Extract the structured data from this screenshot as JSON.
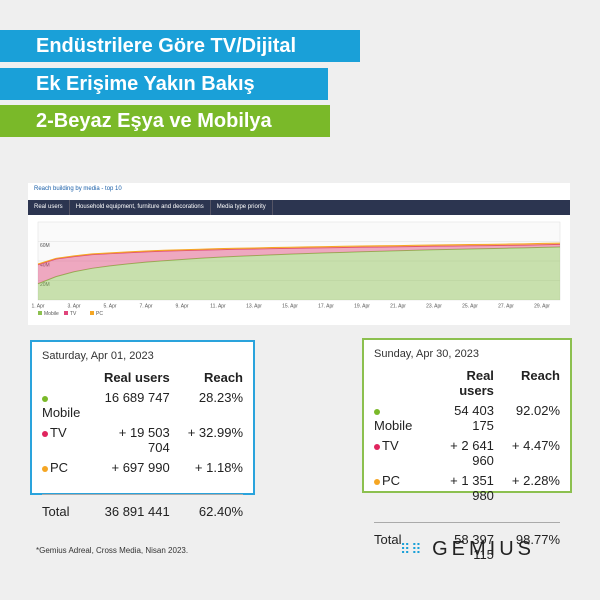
{
  "header": {
    "lines": [
      "Endüstrilere Göre TV/Dijital",
      "Ek Erişime Yakın Bakış",
      "2-Beyaz Eşya ve Mobilya"
    ]
  },
  "chart_data": {
    "type": "area",
    "stacked": true,
    "title": "Reach building by media - top 10",
    "controls": [
      "Real users",
      "Household equipment, furniture and decorations",
      "Media type priority"
    ],
    "categories": [
      "1. Apr",
      null,
      "3. Apr",
      null,
      "5. Apr",
      null,
      "7. Apr",
      null,
      "9. Apr",
      null,
      "11. Apr",
      null,
      "13. Apr",
      null,
      "15. Apr",
      null,
      "17. Apr",
      null,
      "19. Apr",
      null,
      "21. Apr",
      null,
      "23. Apr",
      null,
      "25. Apr",
      null,
      "27. Apr",
      null,
      "29. Apr",
      null
    ],
    "series": [
      {
        "name": "Mobile",
        "color": "#8cc04f",
        "values": [
          16689747,
          24000000,
          29000000,
          32500000,
          35000000,
          37000000,
          38800000,
          40300000,
          41600000,
          42800000,
          43800000,
          44700000,
          45500000,
          46300000,
          47000000,
          47700000,
          48300000,
          48900000,
          49500000,
          50000000,
          50500000,
          51000000,
          51500000,
          51900000,
          52300000,
          52700000,
          53100000,
          53500000,
          54000000,
          54403175
        ]
      },
      {
        "name": "TV",
        "color": "#e0457b",
        "values": [
          19503704,
          18000000,
          15500000,
          14000000,
          12500000,
          11500000,
          10500000,
          9800000,
          9000000,
          8300000,
          7800000,
          7300000,
          6800000,
          6400000,
          6000000,
          5600000,
          5300000,
          5000000,
          4700000,
          4400000,
          4100000,
          3900000,
          3700000,
          3500000,
          3300000,
          3100000,
          2950000,
          2800000,
          2700000,
          2641960
        ]
      },
      {
        "name": "PC",
        "color": "#f5a623",
        "values": [
          697990,
          760000,
          810000,
          850000,
          880000,
          910000,
          940000,
          960000,
          990000,
          1010000,
          1030000,
          1050000,
          1070000,
          1090000,
          1110000,
          1130000,
          1150000,
          1170000,
          1190000,
          1210000,
          1220000,
          1240000,
          1250000,
          1270000,
          1280000,
          1300000,
          1310000,
          1320000,
          1340000,
          1351980
        ]
      }
    ],
    "ylim": [
      0,
      80000000
    ],
    "yticks": [
      {
        "value": 20000000,
        "label": "20M"
      },
      {
        "value": 40000000,
        "label": "40M"
      },
      {
        "value": 60000000,
        "label": "60M"
      }
    ],
    "grid": true
  },
  "tables": [
    {
      "date": "Saturday, Apr 01, 2023",
      "columns": [
        "Real users",
        "Reach"
      ],
      "rows": [
        [
          "Mobile",
          "16 689 747",
          "28.23%"
        ],
        [
          "TV",
          "+ 19 503 704",
          "+ 32.99%"
        ],
        [
          "PC",
          "+ 697 990",
          "+ 1.18%"
        ]
      ],
      "total": [
        "Total",
        "36 891 441",
        "62.40%"
      ]
    },
    {
      "date": "Sunday, Apr 30, 2023",
      "columns": [
        "Real users",
        "Reach"
      ],
      "rows": [
        [
          "Mobile",
          "54 403 175",
          "92.02%"
        ],
        [
          "TV",
          "+ 2 641 960",
          "+ 4.47%"
        ],
        [
          "PC",
          "+ 1 351 980",
          "+ 2.28%"
        ]
      ],
      "total": [
        "Total",
        "58 397 115",
        "98.77%"
      ]
    }
  ],
  "footnote": "*Gemius Adreal, Cross Media, Nisan 2023.",
  "logo": "GEMIUS"
}
